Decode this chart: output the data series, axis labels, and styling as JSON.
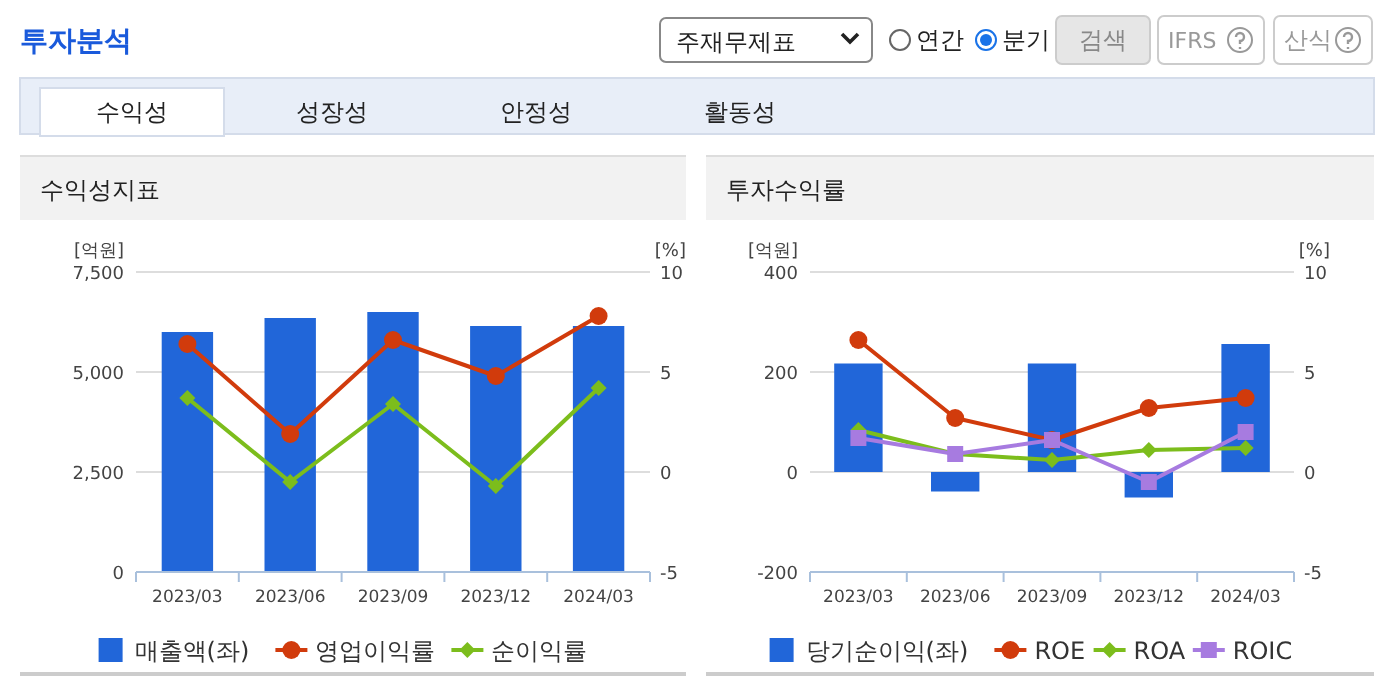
{
  "chart_data": [
    {
      "type": "other",
      "title": "투자분석",
      "annotations": [
        "주재무제표",
        "연간",
        "분기",
        "검색",
        "IFRS",
        "산식",
        "수익성",
        "성장성",
        "안정성",
        "활동성"
      ]
    },
    {
      "type": "bar",
      "title": "수익성지표",
      "ylabel": "[억원]",
      "y2label": "[%]",
      "categories": [
        "2023/03",
        "2023/06",
        "2023/09",
        "2023/12",
        "2024/03"
      ],
      "ylim": [
        0,
        7500
      ],
      "yticks": [
        0,
        {
          "value": 2500,
          "label": "2,500"
        },
        {
          "value": 5000,
          "label": "5,000"
        },
        {
          "value": 7500,
          "label": "7,500"
        }
      ],
      "y2lim": [
        -5,
        10
      ],
      "y2ticks": [
        -5,
        0,
        5,
        10
      ],
      "grid": "y",
      "legend": "bottom",
      "series": [
        {
          "name": "매출액(좌)",
          "type": "bar",
          "color": "#2166d9",
          "values": [
            6000,
            6350,
            6500,
            6150,
            6150
          ]
        },
        {
          "name": "영업이익률",
          "type": "line",
          "axis": "y2",
          "marker": "circle",
          "color": "#d13b0c",
          "values": [
            6.4,
            1.9,
            6.6,
            4.8,
            7.8
          ]
        },
        {
          "name": "순이익률",
          "type": "line",
          "axis": "y2",
          "marker": "diamond",
          "color": "#7cbd1c",
          "values": [
            3.7,
            -0.5,
            3.4,
            -0.7,
            4.2
          ]
        }
      ]
    },
    {
      "type": "bar",
      "title": "투자수익률",
      "ylabel": "[억원]",
      "y2label": "[%]",
      "categories": [
        "2023/03",
        "2023/06",
        "2023/09",
        "2023/12",
        "2024/03"
      ],
      "ylim": [
        -200,
        400
      ],
      "yticks": [
        -200,
        0,
        200,
        400
      ],
      "y2lim": [
        -5,
        10
      ],
      "y2ticks": [
        -5,
        0,
        5,
        10
      ],
      "grid": "y",
      "legend": "bottom",
      "series": [
        {
          "name": "당기순이익(좌)",
          "type": "bar",
          "color": "#2166d9",
          "values": [
            217,
            -39,
            217,
            -51,
            256
          ]
        },
        {
          "name": "ROE",
          "type": "line",
          "axis": "y2",
          "marker": "circle",
          "color": "#d13b0c",
          "values": [
            6.6,
            2.7,
            1.6,
            3.2,
            3.7
          ]
        },
        {
          "name": "ROA",
          "type": "line",
          "axis": "y2",
          "marker": "diamond",
          "color": "#7cbd1c",
          "values": [
            2.1,
            0.9,
            0.6,
            1.1,
            1.2
          ]
        },
        {
          "name": "ROIC",
          "type": "line",
          "axis": "y2",
          "marker": "square",
          "color": "#a77be0",
          "values": [
            1.7,
            0.9,
            1.6,
            -0.5,
            2.0
          ]
        }
      ]
    }
  ]
}
